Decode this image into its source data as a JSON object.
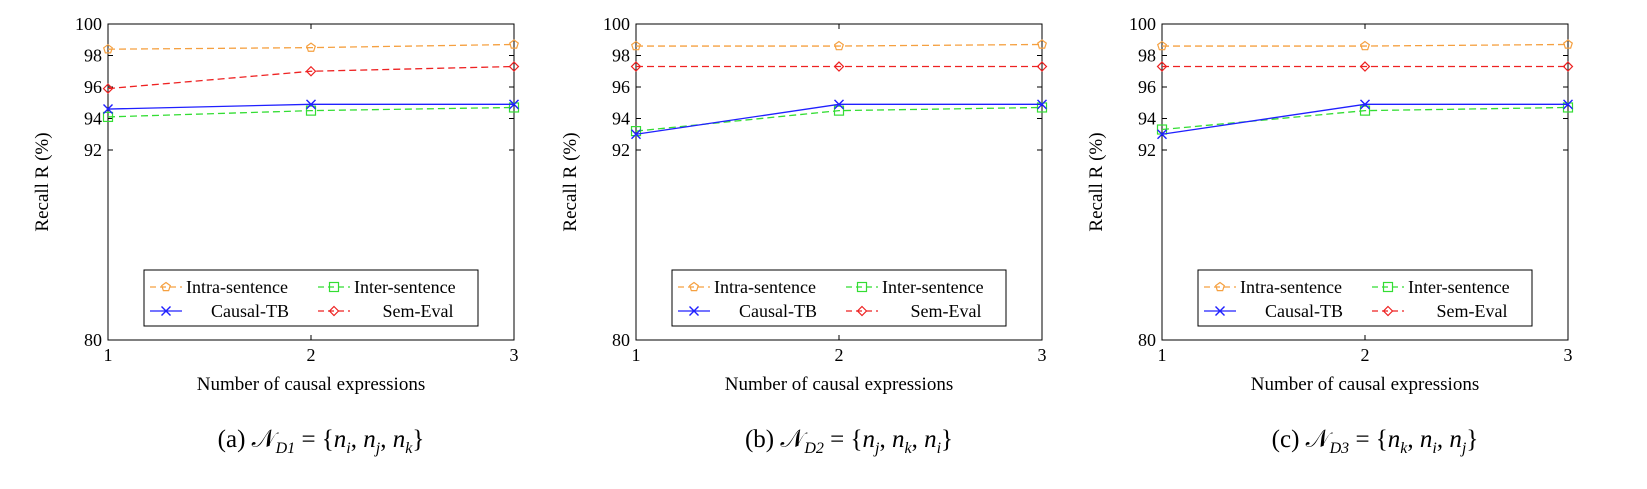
{
  "chart_data": [
    {
      "type": "line",
      "caption": {
        "label": "(a)",
        "math_name": "N",
        "math_sub": "D1",
        "math_rest": " = {n",
        "set": [
          "i",
          "j",
          "k"
        ]
      },
      "xlabel": "Number of causal expressions",
      "ylabel": "Recall R (%)",
      "x": [
        1,
        2,
        3
      ],
      "xlim": [
        1,
        3
      ],
      "ylim": [
        80,
        100
      ],
      "yticks": [
        80,
        92,
        94,
        96,
        98,
        100
      ],
      "xticks": [
        1,
        2,
        3
      ],
      "legend_position": "bottom-right",
      "series": [
        {
          "name": "Intra-sentence",
          "values": [
            98.4,
            98.5,
            98.7
          ],
          "color": "#f5a040",
          "dash": "dashed",
          "marker": "pentagon"
        },
        {
          "name": "Inter-sentence",
          "values": [
            94.1,
            94.5,
            94.7
          ],
          "color": "#33dd33",
          "dash": "dashed",
          "marker": "square"
        },
        {
          "name": "Causal-TB",
          "values": [
            94.6,
            94.9,
            94.9
          ],
          "color": "#2020ff",
          "dash": "solid",
          "marker": "x"
        },
        {
          "name": "Sem-Eval",
          "values": [
            95.9,
            97.0,
            97.3
          ],
          "color": "#ee2222",
          "dash": "dashed",
          "marker": "diamond"
        }
      ]
    },
    {
      "type": "line",
      "caption": {
        "label": "(b)",
        "math_name": "N",
        "math_sub": "D2",
        "set": [
          "j",
          "k",
          "i"
        ]
      },
      "xlabel": "Number of causal expressions",
      "ylabel": "Recall R (%)",
      "x": [
        1,
        2,
        3
      ],
      "xlim": [
        1,
        3
      ],
      "ylim": [
        80,
        100
      ],
      "yticks": [
        80,
        92,
        94,
        96,
        98,
        100
      ],
      "xticks": [
        1,
        2,
        3
      ],
      "legend_position": "bottom-right",
      "series": [
        {
          "name": "Intra-sentence",
          "values": [
            98.6,
            98.6,
            98.7
          ],
          "color": "#f5a040",
          "dash": "dashed",
          "marker": "pentagon"
        },
        {
          "name": "Inter-sentence",
          "values": [
            93.2,
            94.5,
            94.7
          ],
          "color": "#33dd33",
          "dash": "dashed",
          "marker": "square"
        },
        {
          "name": "Causal-TB",
          "values": [
            93.0,
            94.9,
            94.9
          ],
          "color": "#2020ff",
          "dash": "solid",
          "marker": "x"
        },
        {
          "name": "Sem-Eval",
          "values": [
            97.3,
            97.3,
            97.3
          ],
          "color": "#ee2222",
          "dash": "dashed",
          "marker": "diamond"
        }
      ]
    },
    {
      "type": "line",
      "caption": {
        "label": "(c)",
        "math_name": "N",
        "math_sub": "D3",
        "set": [
          "k",
          "i",
          "j"
        ]
      },
      "xlabel": "Number of causal expressions",
      "ylabel": "Recall R (%)",
      "x": [
        1,
        2,
        3
      ],
      "xlim": [
        1,
        3
      ],
      "ylim": [
        80,
        100
      ],
      "yticks": [
        80,
        92,
        94,
        96,
        98,
        100
      ],
      "xticks": [
        1,
        2,
        3
      ],
      "legend_position": "bottom-right",
      "series": [
        {
          "name": "Intra-sentence",
          "values": [
            98.6,
            98.6,
            98.7
          ],
          "color": "#f5a040",
          "dash": "dashed",
          "marker": "pentagon"
        },
        {
          "name": "Inter-sentence",
          "values": [
            93.3,
            94.5,
            94.7
          ],
          "color": "#33dd33",
          "dash": "dashed",
          "marker": "square"
        },
        {
          "name": "Causal-TB",
          "values": [
            93.0,
            94.9,
            94.9
          ],
          "color": "#2020ff",
          "dash": "solid",
          "marker": "x"
        },
        {
          "name": "Sem-Eval",
          "values": [
            97.3,
            97.3,
            97.3
          ],
          "color": "#ee2222",
          "dash": "dashed",
          "marker": "diamond"
        }
      ]
    }
  ]
}
